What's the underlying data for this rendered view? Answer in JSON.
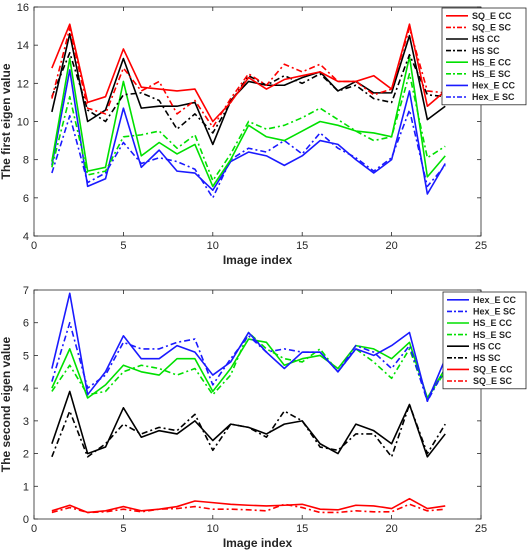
{
  "chart_data": [
    {
      "type": "line",
      "title": "",
      "xlabel": "Image index",
      "ylabel": "The first eigen value",
      "xlim": [
        0,
        25
      ],
      "ylim": [
        4,
        16
      ],
      "xticks": [
        0,
        5,
        10,
        15,
        20,
        25
      ],
      "yticks": [
        4,
        6,
        8,
        10,
        12,
        14,
        16
      ],
      "grid": false,
      "legend_position": "top-right",
      "x": [
        1,
        2,
        3,
        4,
        5,
        6,
        7,
        8,
        9,
        10,
        11,
        12,
        13,
        14,
        15,
        16,
        17,
        18,
        19,
        20,
        21,
        22,
        23
      ],
      "series": [
        {
          "name": "SQ_E CC",
          "color": "#ff0000",
          "style": "solid",
          "values": [
            12.8,
            15.1,
            11.0,
            11.3,
            13.8,
            11.8,
            11.7,
            11.6,
            11.7,
            10.0,
            11.0,
            12.3,
            11.7,
            12.2,
            12.4,
            12.6,
            12.1,
            12.1,
            12.4,
            11.7,
            15.1,
            10.8,
            11.6
          ]
        },
        {
          "name": "SQ_E SC",
          "color": "#ff0000",
          "style": "dashed",
          "values": [
            11.2,
            14.9,
            10.7,
            10.4,
            12.8,
            11.6,
            12.1,
            10.4,
            11.1,
            9.7,
            11.2,
            12.5,
            11.9,
            13.0,
            12.6,
            13.0,
            12.1,
            12.1,
            11.4,
            11.7,
            14.9,
            11.6,
            11.5
          ]
        },
        {
          "name": "HS CC",
          "color": "#000000",
          "style": "solid",
          "values": [
            10.5,
            14.6,
            10.0,
            10.6,
            13.3,
            10.7,
            10.8,
            10.8,
            11.0,
            8.8,
            11.1,
            12.1,
            11.9,
            11.9,
            12.3,
            12.6,
            11.6,
            12.1,
            11.5,
            11.5,
            14.5,
            10.1,
            10.8
          ]
        },
        {
          "name": "HS SC",
          "color": "#000000",
          "style": "dashed",
          "values": [
            11.3,
            13.6,
            10.6,
            10.0,
            11.4,
            11.5,
            11.1,
            9.6,
            10.4,
            9.4,
            11.0,
            12.4,
            11.9,
            12.4,
            12.0,
            12.5,
            11.6,
            11.9,
            11.2,
            11.0,
            13.5,
            11.4,
            11.3
          ]
        },
        {
          "name": "HS_E CC",
          "color": "#00e000",
          "style": "solid",
          "values": [
            7.9,
            13.3,
            7.4,
            7.6,
            12.1,
            8.2,
            8.9,
            8.3,
            8.8,
            6.6,
            8.0,
            9.8,
            9.2,
            9.0,
            9.5,
            10.0,
            9.8,
            9.5,
            9.4,
            9.2,
            13.4,
            7.1,
            8.2
          ]
        },
        {
          "name": "HS_E SC",
          "color": "#00e000",
          "style": "dashed",
          "values": [
            7.6,
            11.3,
            7.2,
            7.4,
            9.2,
            9.3,
            9.5,
            8.6,
            9.3,
            6.9,
            8.3,
            10.0,
            9.6,
            9.8,
            10.2,
            10.7,
            10.1,
            9.5,
            9.0,
            9.2,
            12.5,
            8.1,
            8.7
          ]
        },
        {
          "name": "Hex_E CC",
          "color": "#1a1aff",
          "style": "solid",
          "values": [
            7.7,
            12.7,
            6.6,
            7.0,
            10.7,
            7.6,
            8.5,
            7.4,
            7.3,
            6.4,
            7.9,
            8.4,
            8.2,
            7.7,
            8.2,
            9.0,
            8.8,
            8.0,
            7.3,
            8.0,
            11.6,
            6.2,
            7.8
          ]
        },
        {
          "name": "Hex_E SC",
          "color": "#1a1aff",
          "style": "dashed",
          "values": [
            7.3,
            10.3,
            6.8,
            7.3,
            8.9,
            7.8,
            8.1,
            7.9,
            7.5,
            6.0,
            8.0,
            8.6,
            8.4,
            9.0,
            8.3,
            9.4,
            8.6,
            8.1,
            7.4,
            8.1,
            10.6,
            6.6,
            7.7
          ]
        }
      ]
    },
    {
      "type": "line",
      "title": "",
      "xlabel": "Image index",
      "ylabel": "The second eigen value",
      "xlim": [
        0,
        25
      ],
      "ylim": [
        0,
        7
      ],
      "xticks": [
        0,
        5,
        10,
        15,
        20,
        25
      ],
      "yticks": [
        0,
        1,
        2,
        3,
        4,
        5,
        6,
        7
      ],
      "grid": false,
      "legend_position": "top-right",
      "x": [
        1,
        2,
        3,
        4,
        5,
        6,
        7,
        8,
        9,
        10,
        11,
        12,
        13,
        14,
        15,
        16,
        17,
        18,
        19,
        20,
        21,
        22,
        23
      ],
      "series": [
        {
          "name": "Hex_E CC",
          "color": "#1a1aff",
          "style": "solid",
          "values": [
            4.6,
            6.9,
            3.8,
            4.5,
            5.6,
            4.9,
            4.9,
            5.3,
            5.1,
            4.4,
            4.8,
            5.7,
            5.1,
            4.6,
            5.1,
            5.1,
            4.5,
            5.2,
            5.0,
            5.3,
            5.7,
            3.6,
            4.9
          ]
        },
        {
          "name": "Hex_E SC",
          "color": "#1a1aff",
          "style": "dashed",
          "values": [
            4.2,
            6.0,
            4.0,
            4.4,
            5.4,
            5.2,
            5.2,
            5.4,
            5.5,
            4.1,
            4.9,
            5.6,
            5.1,
            5.2,
            5.1,
            5.1,
            4.5,
            5.3,
            5.1,
            4.6,
            5.3,
            3.6,
            4.6
          ]
        },
        {
          "name": "HS_E CC",
          "color": "#00e000",
          "style": "solid",
          "values": [
            4.0,
            5.2,
            3.7,
            4.1,
            4.7,
            4.5,
            4.4,
            4.9,
            4.9,
            3.9,
            4.6,
            5.5,
            5.4,
            4.7,
            4.9,
            5.0,
            4.6,
            5.3,
            5.2,
            4.9,
            5.4,
            3.7,
            4.6
          ]
        },
        {
          "name": "HS_E SC",
          "color": "#00e000",
          "style": "dashed",
          "values": [
            3.9,
            4.7,
            3.8,
            3.9,
            4.5,
            4.7,
            4.6,
            4.4,
            4.6,
            3.8,
            4.4,
            5.7,
            5.2,
            4.9,
            4.8,
            5.2,
            4.5,
            5.2,
            4.8,
            4.3,
            5.2,
            3.7,
            4.5
          ]
        },
        {
          "name": "HS CC",
          "color": "#000000",
          "style": "solid",
          "values": [
            2.3,
            3.9,
            2.0,
            2.2,
            3.4,
            2.5,
            2.7,
            2.6,
            3.0,
            2.4,
            2.9,
            2.8,
            2.6,
            2.9,
            3.0,
            2.3,
            2.0,
            2.9,
            2.7,
            2.3,
            3.5,
            1.9,
            2.6
          ]
        },
        {
          "name": "HS SC",
          "color": "#000000",
          "style": "dashed",
          "values": [
            1.9,
            3.3,
            1.9,
            2.3,
            2.9,
            2.6,
            2.8,
            2.7,
            3.2,
            2.1,
            2.9,
            2.8,
            2.5,
            3.3,
            3.0,
            2.2,
            2.1,
            2.6,
            2.6,
            1.9,
            3.5,
            2.0,
            2.9
          ]
        },
        {
          "name": "SQ_E CC",
          "color": "#ff0000",
          "style": "solid",
          "values": [
            0.25,
            0.42,
            0.2,
            0.25,
            0.38,
            0.25,
            0.3,
            0.38,
            0.55,
            0.5,
            0.45,
            0.42,
            0.4,
            0.42,
            0.45,
            0.3,
            0.28,
            0.42,
            0.4,
            0.32,
            0.62,
            0.32,
            0.4
          ]
        },
        {
          "name": "SQ_E SC",
          "color": "#ff0000",
          "style": "dashed",
          "values": [
            0.2,
            0.35,
            0.2,
            0.22,
            0.3,
            0.22,
            0.3,
            0.32,
            0.38,
            0.3,
            0.3,
            0.28,
            0.25,
            0.45,
            0.35,
            0.2,
            0.2,
            0.25,
            0.22,
            0.22,
            0.45,
            0.25,
            0.3
          ]
        }
      ]
    }
  ]
}
